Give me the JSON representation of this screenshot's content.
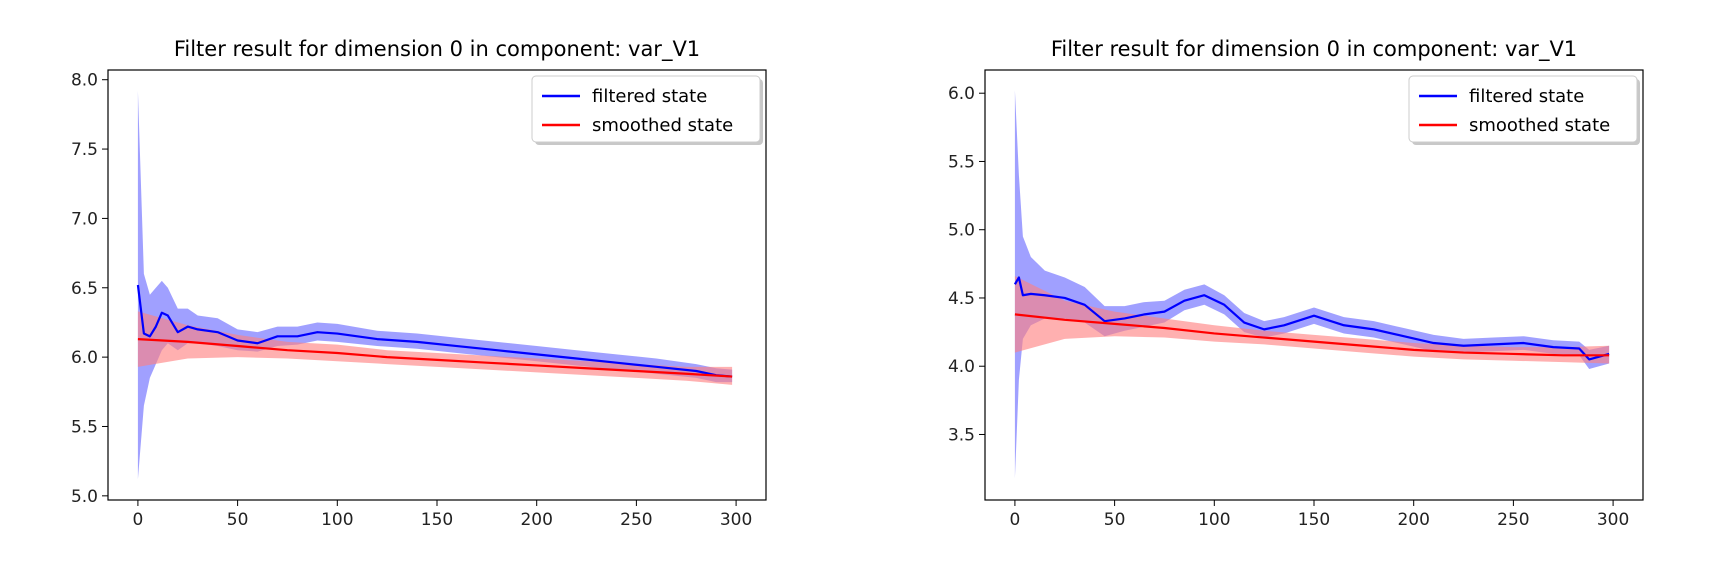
{
  "chart_data": [
    {
      "type": "line",
      "title": "Filter result for dimension 0 in component: var_V1",
      "xlabel": "",
      "ylabel": "",
      "xlim": [
        -15,
        315
      ],
      "ylim": [
        4.97,
        8.07
      ],
      "xticks": [
        0,
        50,
        100,
        150,
        200,
        250,
        300
      ],
      "yticks": [
        5.0,
        5.5,
        6.0,
        6.5,
        7.0,
        7.5,
        8.0
      ],
      "grid": false,
      "legend": "top-right",
      "series": [
        {
          "name": "filtered state",
          "color": "#0000ff",
          "band_color": "#6666ff",
          "x": [
            0,
            3,
            6,
            9,
            12,
            15,
            20,
            25,
            30,
            40,
            50,
            60,
            70,
            80,
            90,
            100,
            120,
            140,
            160,
            180,
            200,
            220,
            240,
            260,
            280,
            290,
            298
          ],
          "y": [
            6.52,
            6.17,
            6.15,
            6.22,
            6.32,
            6.3,
            6.18,
            6.22,
            6.2,
            6.18,
            6.12,
            6.1,
            6.15,
            6.15,
            6.18,
            6.17,
            6.13,
            6.11,
            6.08,
            6.05,
            6.02,
            5.99,
            5.96,
            5.93,
            5.9,
            5.87,
            5.86
          ],
          "lower": [
            5.12,
            5.65,
            5.85,
            5.95,
            6.05,
            6.1,
            6.05,
            6.1,
            6.1,
            6.08,
            6.05,
            6.04,
            6.08,
            6.09,
            6.12,
            6.11,
            6.08,
            6.06,
            6.03,
            6.0,
            5.97,
            5.94,
            5.91,
            5.88,
            5.85,
            5.82,
            5.82
          ],
          "upper": [
            7.92,
            6.6,
            6.45,
            6.5,
            6.55,
            6.5,
            6.35,
            6.35,
            6.3,
            6.28,
            6.2,
            6.18,
            6.22,
            6.22,
            6.25,
            6.24,
            6.19,
            6.17,
            6.14,
            6.11,
            6.08,
            6.05,
            6.02,
            5.99,
            5.95,
            5.92,
            5.91
          ]
        },
        {
          "name": "smoothed state",
          "color": "#ff0000",
          "band_color": "#ff8080",
          "x": [
            0,
            25,
            50,
            75,
            100,
            125,
            150,
            175,
            200,
            225,
            250,
            275,
            298
          ],
          "y": [
            6.13,
            6.11,
            6.08,
            6.05,
            6.03,
            6.0,
            5.98,
            5.96,
            5.94,
            5.92,
            5.9,
            5.88,
            5.86
          ],
          "lower": [
            5.93,
            5.99,
            6.0,
            5.99,
            5.97,
            5.95,
            5.93,
            5.91,
            5.89,
            5.87,
            5.85,
            5.83,
            5.8
          ],
          "upper": [
            6.33,
            6.23,
            6.16,
            6.11,
            6.09,
            6.05,
            6.03,
            6.01,
            5.99,
            5.97,
            5.95,
            5.93,
            5.93
          ]
        }
      ]
    },
    {
      "type": "line",
      "title": "Filter result for dimension 0 in component: var_V1",
      "xlabel": "",
      "ylabel": "",
      "xlim": [
        -15,
        315
      ],
      "ylim": [
        3.02,
        6.17
      ],
      "xticks": [
        0,
        50,
        100,
        150,
        200,
        250,
        300
      ],
      "yticks": [
        3.5,
        4.0,
        4.5,
        5.0,
        5.5,
        6.0
      ],
      "grid": false,
      "legend": "top-right",
      "series": [
        {
          "name": "filtered state",
          "color": "#0000ff",
          "band_color": "#6666ff",
          "x": [
            0,
            2,
            4,
            8,
            15,
            25,
            35,
            45,
            55,
            65,
            75,
            85,
            95,
            105,
            115,
            125,
            135,
            150,
            165,
            180,
            195,
            210,
            225,
            240,
            255,
            270,
            283,
            288,
            298
          ],
          "y": [
            4.6,
            4.65,
            4.52,
            4.53,
            4.52,
            4.5,
            4.45,
            4.33,
            4.35,
            4.38,
            4.4,
            4.48,
            4.52,
            4.45,
            4.32,
            4.27,
            4.3,
            4.37,
            4.3,
            4.27,
            4.22,
            4.17,
            4.15,
            4.16,
            4.17,
            4.14,
            4.13,
            4.05,
            4.09
          ],
          "lower": [
            3.18,
            3.9,
            4.2,
            4.3,
            4.35,
            4.35,
            4.32,
            4.22,
            4.26,
            4.29,
            4.32,
            4.41,
            4.45,
            4.38,
            4.25,
            4.21,
            4.24,
            4.31,
            4.24,
            4.21,
            4.16,
            4.11,
            4.1,
            4.11,
            4.12,
            4.09,
            4.08,
            3.98,
            4.02
          ],
          "upper": [
            6.02,
            5.4,
            4.95,
            4.8,
            4.7,
            4.65,
            4.58,
            4.44,
            4.44,
            4.47,
            4.48,
            4.56,
            4.6,
            4.52,
            4.39,
            4.33,
            4.36,
            4.43,
            4.36,
            4.33,
            4.28,
            4.23,
            4.2,
            4.21,
            4.22,
            4.19,
            4.18,
            4.12,
            4.15
          ]
        },
        {
          "name": "smoothed state",
          "color": "#ff0000",
          "band_color": "#ff8080",
          "x": [
            0,
            25,
            50,
            75,
            100,
            125,
            150,
            175,
            200,
            225,
            250,
            275,
            298
          ],
          "y": [
            4.38,
            4.34,
            4.31,
            4.28,
            4.24,
            4.21,
            4.18,
            4.15,
            4.12,
            4.1,
            4.09,
            4.08,
            4.08
          ],
          "lower": [
            4.1,
            4.2,
            4.22,
            4.21,
            4.18,
            4.16,
            4.13,
            4.1,
            4.07,
            4.05,
            4.04,
            4.03,
            4.02
          ],
          "upper": [
            4.66,
            4.48,
            4.4,
            4.35,
            4.3,
            4.26,
            4.23,
            4.2,
            4.17,
            4.15,
            4.14,
            4.14,
            4.15
          ]
        }
      ]
    }
  ]
}
